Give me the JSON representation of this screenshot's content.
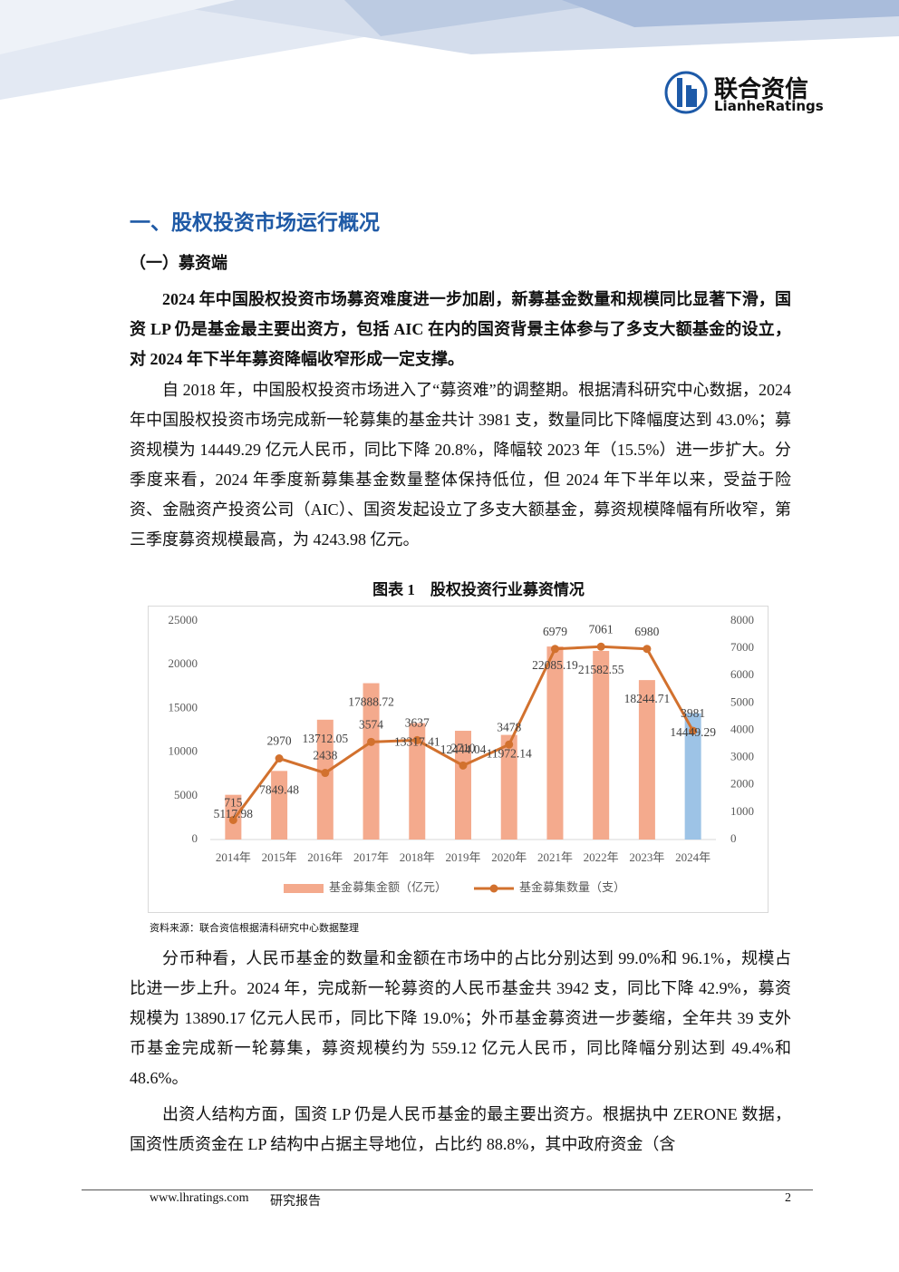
{
  "header": {
    "logo_cn": "联合资信",
    "logo_en": "LianheRatings"
  },
  "section_title": "一、股权投资市场运行概况",
  "subsection_title": "（一）募资端",
  "paragraphs": [
    "2024 年中国股权投资市场募资难度进一步加剧，新募基金数量和规模同比显著下滑，国资 LP 仍是基金最主要出资方，包括 AIC 在内的国资背景主体参与了多支大额基金的设立，对 2024 年下半年募资降幅收窄形成一定支撑。",
    "自 2018 年，中国股权投资市场进入了“募资难”的调整期。根据清科研究中心数据，2024 年中国股权投资市场完成新一轮募集的基金共计 3981 支，数量同比下降幅度达到 43.0%；募资规模为 14449.29 亿元人民币，同比下降 20.8%，降幅较 2023 年（15.5%）进一步扩大。分季度来看，2024 年季度新募集基金数量整体保持低位，但 2024 年下半年以来，受益于险资、金融资产投资公司（AIC）、国资发起设立了多支大额基金，募资规模降幅有所收窄，第三季度募资规模最高，为 4243.98 亿元。",
    "分币种看，人民币基金的数量和金额在市场中的占比分别达到 99.0%和 96.1%，规模占比进一步上升。2024 年，完成新一轮募资的人民币基金共 3942 支，同比下降 42.9%，募资规模为 13890.17 亿元人民币，同比下降 19.0%；外币基金募资进一步萎缩，全年共 39 支外币基金完成新一轮募集，募资规模约为 559.12 亿元人民币，同比降幅分别达到 49.4%和 48.6%。",
    "出资人结构方面，国资 LP 仍是人民币基金的最主要出资方。根据执中 ZERONE 数据，国资性质资金在 LP 结构中占据主导地位，占比约 88.8%，其中政府资金（含"
  ],
  "figure": {
    "caption": "图表 1　股权投资行业募资情况",
    "source": "资料来源：联合资信根据清科研究中心数据整理"
  },
  "chart_data": {
    "type": "bar_line",
    "categories": [
      "2014年",
      "2015年",
      "2016年",
      "2017年",
      "2018年",
      "2019年",
      "2020年",
      "2021年",
      "2022年",
      "2023年",
      "2024年"
    ],
    "series": [
      {
        "name": "基金募集金额（亿元）",
        "type": "bar",
        "axis": "y",
        "color": "#f4aa8d",
        "colors": [
          "#f4aa8d",
          "#f4aa8d",
          "#f4aa8d",
          "#f4aa8d",
          "#f4aa8d",
          "#f4aa8d",
          "#f4aa8d",
          "#f4aa8d",
          "#f4aa8d",
          "#f4aa8d",
          "#9dc3e6"
        ],
        "values": [
          5117.98,
          7849.48,
          13712.05,
          17888.72,
          13317.41,
          12444.04,
          11972.14,
          22085.19,
          21582.55,
          18244.71,
          14449.29
        ]
      },
      {
        "name": "基金募集数量（支）",
        "type": "line",
        "axis": "y2",
        "color": "#d2712e",
        "values": [
          715,
          2970,
          2438,
          3574,
          3637,
          2710,
          3478,
          6979,
          7061,
          6980,
          3981
        ]
      }
    ],
    "ylim": [
      0,
      25000
    ],
    "yticks": [
      0,
      5000,
      10000,
      15000,
      20000,
      25000
    ],
    "y2lim": [
      0,
      8000
    ],
    "y2ticks": [
      0,
      1000,
      2000,
      3000,
      4000,
      5000,
      6000,
      7000,
      8000
    ],
    "legend": "bottom"
  },
  "footer": {
    "url": "www.lhratings.com",
    "label": "研究报告",
    "page": 2
  }
}
